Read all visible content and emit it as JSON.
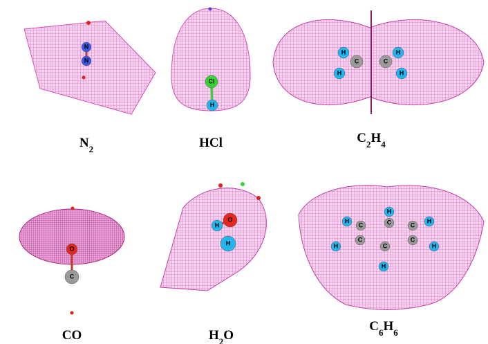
{
  "panels": [
    {
      "formula": [
        {
          "text": "N"
        },
        {
          "text": "2",
          "sub": true
        }
      ],
      "atoms": [
        "N",
        "N"
      ]
    },
    {
      "formula": [
        {
          "text": "HCl"
        }
      ],
      "atoms": [
        "Cl",
        "H"
      ]
    },
    {
      "formula": [
        {
          "text": "C"
        },
        {
          "text": "2",
          "sub": true
        },
        {
          "text": "H"
        },
        {
          "text": "4",
          "sub": true
        }
      ],
      "atoms": [
        "H",
        "H",
        "C",
        "C",
        "H",
        "H"
      ]
    },
    {
      "formula": [
        {
          "text": "CO"
        }
      ],
      "atoms": [
        "O",
        "C"
      ]
    },
    {
      "formula": [
        {
          "text": "H"
        },
        {
          "text": "2",
          "sub": true
        },
        {
          "text": "O"
        }
      ],
      "atoms": [
        "H",
        "O",
        "H"
      ]
    },
    {
      "formula": [
        {
          "text": "C"
        },
        {
          "text": "6",
          "sub": true
        },
        {
          "text": "H"
        },
        {
          "text": "6",
          "sub": true
        }
      ],
      "atoms": [
        "H",
        "H",
        "H",
        "H",
        "H",
        "H",
        "C",
        "C",
        "C",
        "C",
        "C",
        "C"
      ]
    }
  ]
}
